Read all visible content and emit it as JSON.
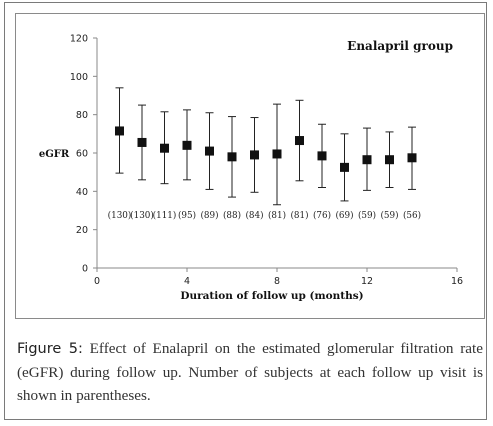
{
  "chart_data": {
    "type": "scatter",
    "title": "Enalapril group",
    "xlabel": "Duration of follow up (months)",
    "ylabel": "eGFR",
    "xlim": [
      0,
      16
    ],
    "ylim": [
      0,
      120
    ],
    "xticks": [
      0,
      4,
      8,
      12,
      16
    ],
    "yticks": [
      0,
      20,
      40,
      60,
      80,
      100,
      120
    ],
    "grid": false,
    "series": [
      {
        "x": [
          1,
          2,
          3,
          4,
          5,
          6,
          7,
          8,
          9,
          10,
          11,
          12,
          13,
          14
        ],
        "y": [
          71.5,
          65.5,
          62.5,
          64,
          61,
          58,
          59,
          59.5,
          66.5,
          58.5,
          52.5,
          56.5,
          56.5,
          57.5
        ],
        "error_upper": [
          94,
          85,
          81.5,
          82.5,
          81,
          79,
          78.5,
          85.5,
          87.5,
          75,
          70,
          73,
          71,
          73.5
        ],
        "error_lower": [
          49.5,
          46,
          44,
          46,
          41,
          37,
          39.5,
          33,
          45.5,
          42,
          35,
          40.5,
          42,
          41
        ]
      }
    ],
    "annotations": [
      "(130)",
      "(130)",
      "(111)",
      "(95)",
      "(89)",
      "(88)",
      "(84)",
      "(81)",
      "(81)",
      "(76)",
      "(69)",
      "(59)",
      "(59)",
      "(56)"
    ]
  },
  "caption": {
    "label": "Figure 5:",
    "text": " Effect of Enalapril on the estimated glomerular filtration rate (eGFR) during follow up. Number of subjects at each follow up visit is shown in parentheses."
  }
}
